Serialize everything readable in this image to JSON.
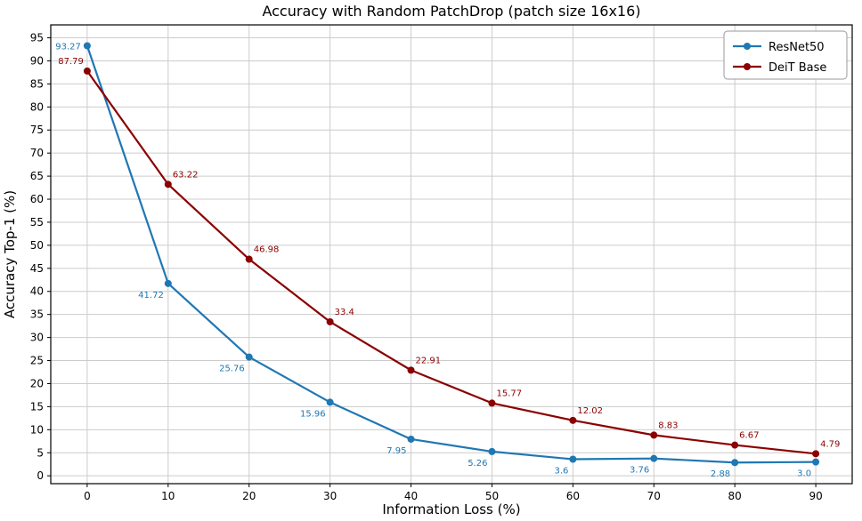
{
  "title": "Accuracy with Random PatchDrop (patch size 16x16)",
  "chart_data": {
    "type": "line",
    "title": "Accuracy with Random PatchDrop (patch size 16x16)",
    "xlabel": "Information Loss (%)",
    "ylabel": "Accuracy Top-1 (%)",
    "x": [
      0,
      10,
      20,
      30,
      40,
      50,
      60,
      70,
      80,
      90
    ],
    "series": [
      {
        "name": "ResNet50",
        "color": "#1f77b4",
        "values": [
          93.27,
          41.72,
          25.76,
          15.96,
          7.95,
          5.26,
          3.6,
          3.76,
          2.88,
          3.0
        ],
        "labels": [
          "93.27",
          "41.72",
          "25.76",
          "15.96",
          "7.95",
          "5.26",
          "3.6",
          "3.76",
          "2.88",
          "3.0"
        ]
      },
      {
        "name": "DeiT Base",
        "color": "#8b0000",
        "values": [
          87.79,
          63.22,
          46.98,
          33.4,
          22.91,
          15.77,
          12.02,
          8.83,
          6.67,
          4.79
        ],
        "labels": [
          "87.79",
          "63.22",
          "46.98",
          "33.4",
          "22.91",
          "15.77",
          "12.02",
          "8.83",
          "6.67",
          "4.79"
        ]
      }
    ],
    "xticks": [
      0,
      10,
      20,
      30,
      40,
      50,
      60,
      70,
      80,
      90
    ],
    "yticks": [
      0,
      5,
      10,
      15,
      20,
      25,
      30,
      35,
      40,
      45,
      50,
      55,
      60,
      65,
      70,
      75,
      80,
      85,
      90,
      95
    ],
    "xlim": [
      -4.5,
      94.5
    ],
    "ylim": [
      -1.7,
      97.8
    ],
    "grid": true,
    "legend_position": "upper right",
    "grid_color": "#cccccc",
    "axis_color": "#000000",
    "background": "#ffffff"
  }
}
